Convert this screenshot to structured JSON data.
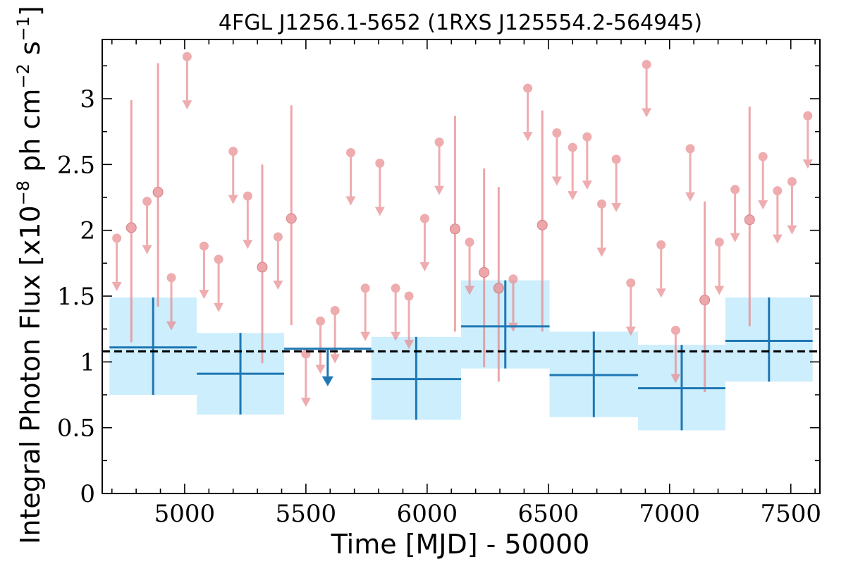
{
  "chart_data": {
    "type": "scatter",
    "title": "4FGL J1256.1-5652 (1RXS J125554.2-564945)",
    "xlabel": "Time [MJD] - 50000",
    "ylabel": {
      "prefix": "Integral Photon Flux [x10",
      "exp1": "−8",
      "middle": " ph cm",
      "exp2": "−2",
      "middle2": " s",
      "exp3": "−1",
      "suffix": "]"
    },
    "xlim": [
      4660,
      7620
    ],
    "ylim": [
      0,
      3.45
    ],
    "x_ticks": [
      {
        "value": 5000,
        "label": "5000"
      },
      {
        "value": 5500,
        "label": "5500"
      },
      {
        "value": 6000,
        "label": "6000"
      },
      {
        "value": 6500,
        "label": "6500"
      },
      {
        "value": 7000,
        "label": "7000"
      },
      {
        "value": 7500,
        "label": "7500"
      }
    ],
    "y_ticks": [
      {
        "value": 0,
        "label": "0"
      },
      {
        "value": 0.5,
        "label": "0.5"
      },
      {
        "value": 1,
        "label": "1"
      },
      {
        "value": 1.5,
        "label": "1.5"
      },
      {
        "value": 2,
        "label": "2"
      },
      {
        "value": 2.5,
        "label": "2.5"
      },
      {
        "value": 3,
        "label": "3"
      }
    ],
    "mean_flux": 1.08,
    "colors": {
      "long_bin": "#1f77b4",
      "band": "#cdeefc",
      "short_bin": "#e8898e",
      "mean_line": "#000000"
    },
    "long_bins": [
      {
        "x_start": 4690,
        "x_end": 5050,
        "y": 1.11,
        "y_low": 0.75,
        "y_high": 1.49,
        "upper_limit": false
      },
      {
        "x_start": 5050,
        "x_end": 5410,
        "y": 0.91,
        "y_low": 0.6,
        "y_high": 1.22,
        "upper_limit": false
      },
      {
        "x_start": 5410,
        "x_end": 5770,
        "y": 1.1,
        "y_low": 0.89,
        "y_high": 1.1,
        "upper_limit": true
      },
      {
        "x_start": 5770,
        "x_end": 6140,
        "y": 0.87,
        "y_low": 0.56,
        "y_high": 1.19,
        "upper_limit": false
      },
      {
        "x_start": 6140,
        "x_end": 6505,
        "y": 1.27,
        "y_low": 0.95,
        "y_high": 1.62,
        "upper_limit": false
      },
      {
        "x_start": 6505,
        "x_end": 6870,
        "y": 0.9,
        "y_low": 0.58,
        "y_high": 1.23,
        "upper_limit": false
      },
      {
        "x_start": 6870,
        "x_end": 7230,
        "y": 0.8,
        "y_low": 0.48,
        "y_high": 1.13,
        "upper_limit": false
      },
      {
        "x_start": 7230,
        "x_end": 7590,
        "y": 1.16,
        "y_low": 0.85,
        "y_high": 1.49,
        "upper_limit": false
      }
    ],
    "short_bins": {
      "upper_limits": [
        {
          "x": 4720,
          "y": 1.94
        },
        {
          "x": 4845,
          "y": 2.22
        },
        {
          "x": 4945,
          "y": 1.64
        },
        {
          "x": 5010,
          "y": 3.32
        },
        {
          "x": 5080,
          "y": 1.88
        },
        {
          "x": 5140,
          "y": 1.78
        },
        {
          "x": 5200,
          "y": 2.6
        },
        {
          "x": 5260,
          "y": 2.26
        },
        {
          "x": 5385,
          "y": 1.95
        },
        {
          "x": 5500,
          "y": 1.06
        },
        {
          "x": 5560,
          "y": 1.31
        },
        {
          "x": 5620,
          "y": 1.39
        },
        {
          "x": 5685,
          "y": 2.59
        },
        {
          "x": 5745,
          "y": 1.56
        },
        {
          "x": 5805,
          "y": 2.51
        },
        {
          "x": 5870,
          "y": 1.56
        },
        {
          "x": 5925,
          "y": 1.5
        },
        {
          "x": 5990,
          "y": 2.09
        },
        {
          "x": 6050,
          "y": 2.67
        },
        {
          "x": 6175,
          "y": 1.91
        },
        {
          "x": 6355,
          "y": 1.63
        },
        {
          "x": 6415,
          "y": 3.08
        },
        {
          "x": 6535,
          "y": 2.74
        },
        {
          "x": 6600,
          "y": 2.63
        },
        {
          "x": 6660,
          "y": 2.71
        },
        {
          "x": 6720,
          "y": 2.2
        },
        {
          "x": 6780,
          "y": 2.54
        },
        {
          "x": 6840,
          "y": 1.6
        },
        {
          "x": 6905,
          "y": 3.26
        },
        {
          "x": 6965,
          "y": 1.89
        },
        {
          "x": 7025,
          "y": 1.24
        },
        {
          "x": 7085,
          "y": 2.62
        },
        {
          "x": 7205,
          "y": 1.91
        },
        {
          "x": 7270,
          "y": 2.31
        },
        {
          "x": 7385,
          "y": 2.56
        },
        {
          "x": 7445,
          "y": 2.3
        },
        {
          "x": 7505,
          "y": 2.37
        },
        {
          "x": 7570,
          "y": 2.87
        }
      ],
      "detections": [
        {
          "x": 4780,
          "y": 2.02,
          "y_low": 1.15,
          "y_high": 2.99
        },
        {
          "x": 4890,
          "y": 2.29,
          "y_low": 1.42,
          "y_high": 3.27
        },
        {
          "x": 5320,
          "y": 1.72,
          "y_low": 0.99,
          "y_high": 2.5
        },
        {
          "x": 5440,
          "y": 2.09,
          "y_low": 1.28,
          "y_high": 2.95
        },
        {
          "x": 6115,
          "y": 2.01,
          "y_low": 1.23,
          "y_high": 2.87
        },
        {
          "x": 6235,
          "y": 1.68,
          "y_low": 0.96,
          "y_high": 2.47
        },
        {
          "x": 6295,
          "y": 1.56,
          "y_low": 0.85,
          "y_high": 2.33
        },
        {
          "x": 6475,
          "y": 2.04,
          "y_low": 1.23,
          "y_high": 2.91
        },
        {
          "x": 7145,
          "y": 1.47,
          "y_low": 0.77,
          "y_high": 2.22
        },
        {
          "x": 7330,
          "y": 2.08,
          "y_low": 1.27,
          "y_high": 2.94
        }
      ]
    }
  }
}
